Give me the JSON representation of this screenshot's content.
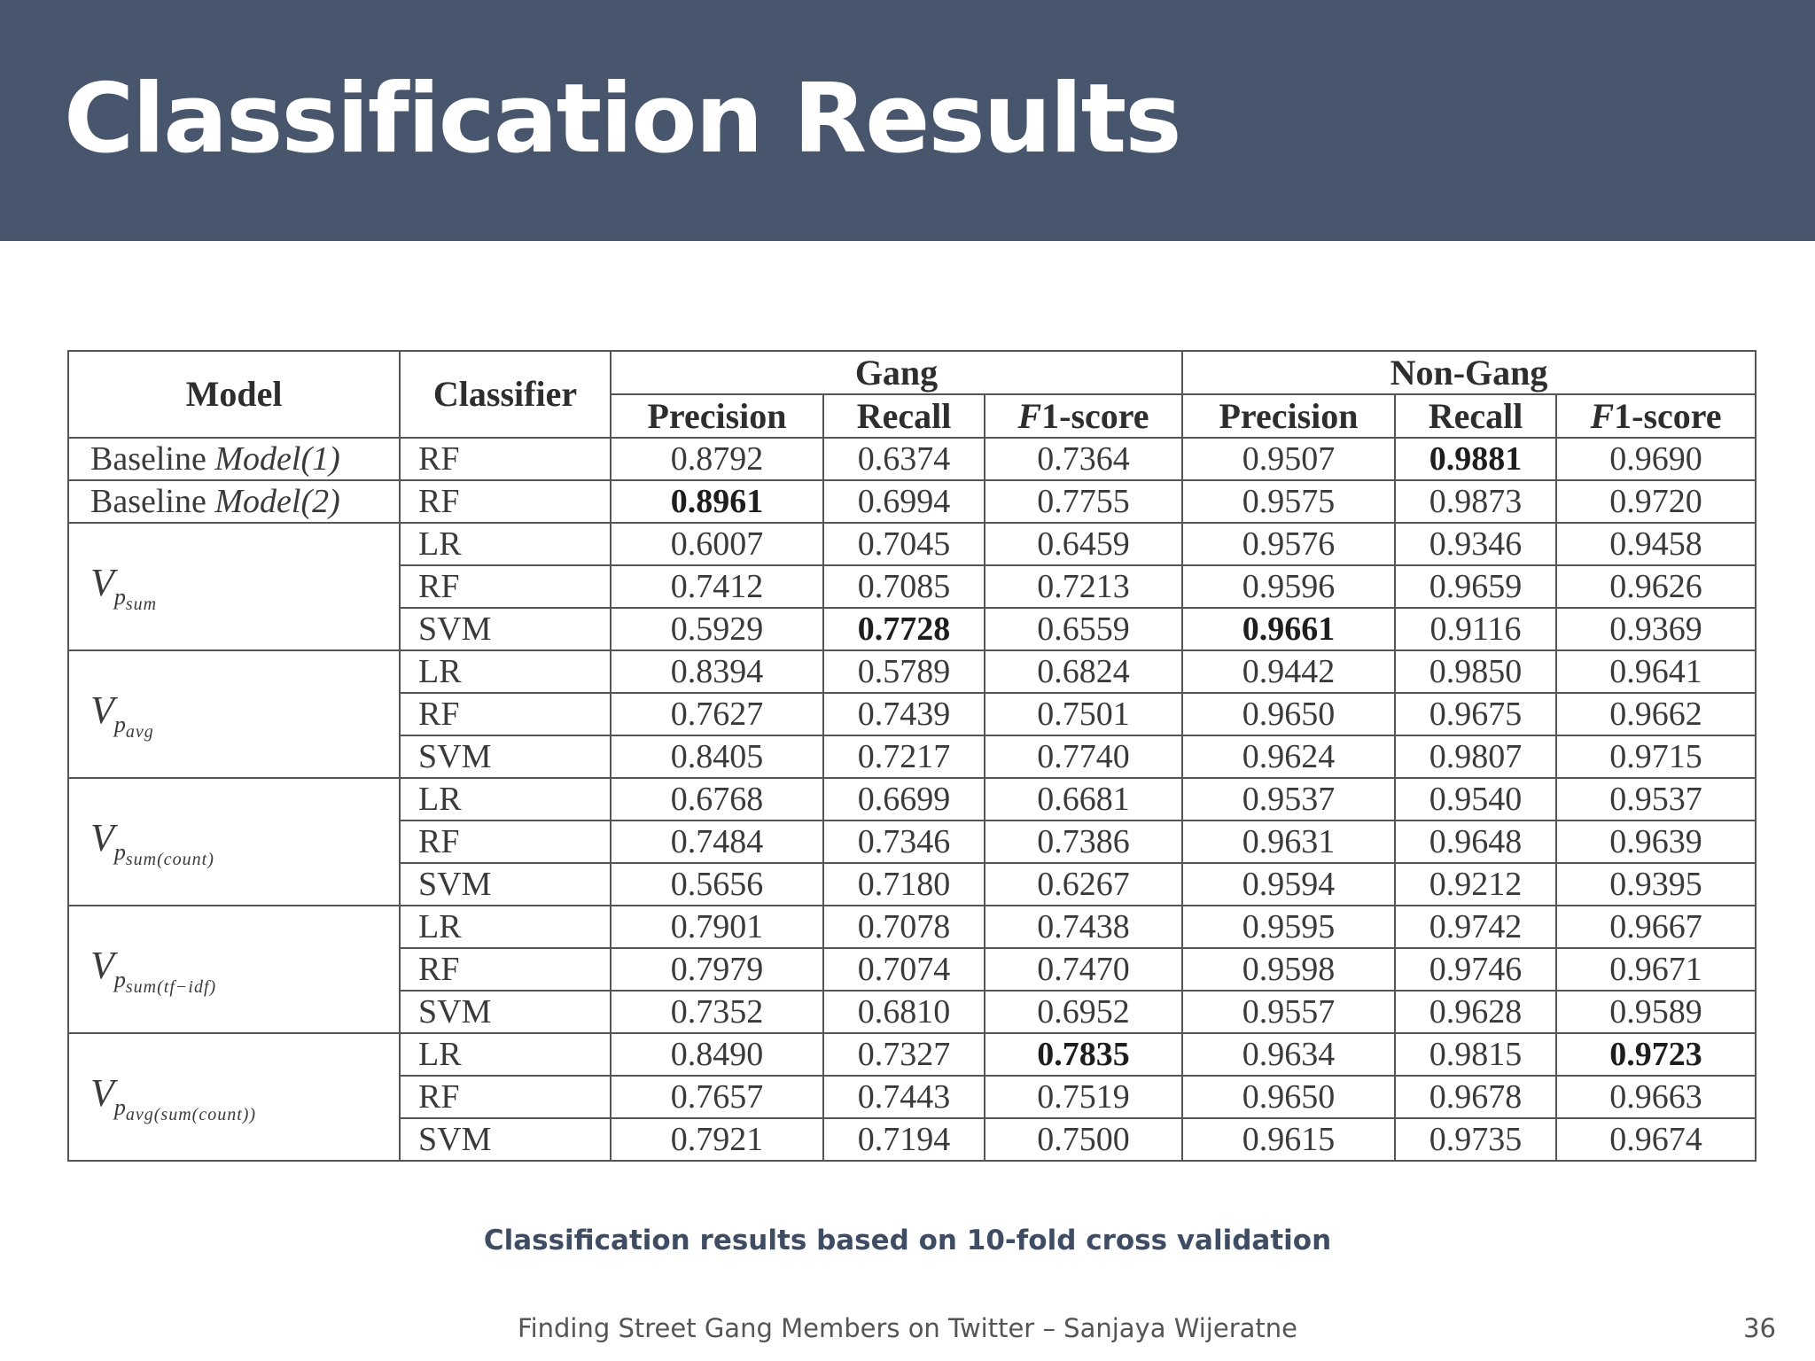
{
  "slide": {
    "title": "Classification Results",
    "caption": "Classification results based on 10-fold cross validation",
    "footer": "Finding Street Gang Members on Twitter – Sanjaya Wijeratne",
    "page_number": "36"
  },
  "table": {
    "headers": {
      "model": "Model",
      "classifier": "Classifier",
      "group_gang": "Gang",
      "group_nongang": "Non-Gang",
      "precision": "Precision",
      "recall": "Recall",
      "f1_prefix": "F",
      "f1_suffix": "1-score"
    },
    "groups": [
      {
        "model_prefix": "Baseline",
        "model_italic": "Model(1)",
        "model_main": "",
        "model_sub": "",
        "model_subsub": "",
        "rows": [
          {
            "classifier": "RF",
            "values": [
              "0.8792",
              "0.6374",
              "0.7364",
              "0.9507",
              "0.9881",
              "0.9690"
            ],
            "best": [
              false,
              false,
              false,
              false,
              true,
              false
            ]
          }
        ]
      },
      {
        "model_prefix": "Baseline",
        "model_italic": "Model(2)",
        "model_main": "",
        "model_sub": "",
        "model_subsub": "",
        "rows": [
          {
            "classifier": "RF",
            "values": [
              "0.8961",
              "0.6994",
              "0.7755",
              "0.9575",
              "0.9873",
              "0.9720"
            ],
            "best": [
              true,
              false,
              false,
              false,
              false,
              false
            ]
          }
        ]
      },
      {
        "model_prefix": "",
        "model_italic": "",
        "model_main": "V",
        "model_sub": "p",
        "model_subsub": "sum",
        "rows": [
          {
            "classifier": "LR",
            "values": [
              "0.6007",
              "0.7045",
              "0.6459",
              "0.9576",
              "0.9346",
              "0.9458"
            ],
            "best": [
              false,
              false,
              false,
              false,
              false,
              false
            ]
          },
          {
            "classifier": "RF",
            "values": [
              "0.7412",
              "0.7085",
              "0.7213",
              "0.9596",
              "0.9659",
              "0.9626"
            ],
            "best": [
              false,
              false,
              false,
              false,
              false,
              false
            ]
          },
          {
            "classifier": "SVM",
            "values": [
              "0.5929",
              "0.7728",
              "0.6559",
              "0.9661",
              "0.9116",
              "0.9369"
            ],
            "best": [
              false,
              true,
              false,
              true,
              false,
              false
            ]
          }
        ]
      },
      {
        "model_prefix": "",
        "model_italic": "",
        "model_main": "V",
        "model_sub": "p",
        "model_subsub": "avg",
        "rows": [
          {
            "classifier": "LR",
            "values": [
              "0.8394",
              "0.5789",
              "0.6824",
              "0.9442",
              "0.9850",
              "0.9641"
            ],
            "best": [
              false,
              false,
              false,
              false,
              false,
              false
            ]
          },
          {
            "classifier": "RF",
            "values": [
              "0.7627",
              "0.7439",
              "0.7501",
              "0.9650",
              "0.9675",
              "0.9662"
            ],
            "best": [
              false,
              false,
              false,
              false,
              false,
              false
            ]
          },
          {
            "classifier": "SVM",
            "values": [
              "0.8405",
              "0.7217",
              "0.7740",
              "0.9624",
              "0.9807",
              "0.9715"
            ],
            "best": [
              false,
              false,
              false,
              false,
              false,
              false
            ]
          }
        ]
      },
      {
        "model_prefix": "",
        "model_italic": "",
        "model_main": "V",
        "model_sub": "p",
        "model_subsub": "sum(count)",
        "rows": [
          {
            "classifier": "LR",
            "values": [
              "0.6768",
              "0.6699",
              "0.6681",
              "0.9537",
              "0.9540",
              "0.9537"
            ],
            "best": [
              false,
              false,
              false,
              false,
              false,
              false
            ]
          },
          {
            "classifier": "RF",
            "values": [
              "0.7484",
              "0.7346",
              "0.7386",
              "0.9631",
              "0.9648",
              "0.9639"
            ],
            "best": [
              false,
              false,
              false,
              false,
              false,
              false
            ]
          },
          {
            "classifier": "SVM",
            "values": [
              "0.5656",
              "0.7180",
              "0.6267",
              "0.9594",
              "0.9212",
              "0.9395"
            ],
            "best": [
              false,
              false,
              false,
              false,
              false,
              false
            ]
          }
        ]
      },
      {
        "model_prefix": "",
        "model_italic": "",
        "model_main": "V",
        "model_sub": "p",
        "model_subsub": "sum(tf−idf)",
        "rows": [
          {
            "classifier": "LR",
            "values": [
              "0.7901",
              "0.7078",
              "0.7438",
              "0.9595",
              "0.9742",
              "0.9667"
            ],
            "best": [
              false,
              false,
              false,
              false,
              false,
              false
            ]
          },
          {
            "classifier": "RF",
            "values": [
              "0.7979",
              "0.7074",
              "0.7470",
              "0.9598",
              "0.9746",
              "0.9671"
            ],
            "best": [
              false,
              false,
              false,
              false,
              false,
              false
            ]
          },
          {
            "classifier": "SVM",
            "values": [
              "0.7352",
              "0.6810",
              "0.6952",
              "0.9557",
              "0.9628",
              "0.9589"
            ],
            "best": [
              false,
              false,
              false,
              false,
              false,
              false
            ]
          }
        ]
      },
      {
        "model_prefix": "",
        "model_italic": "",
        "model_main": "V",
        "model_sub": "p",
        "model_subsub": "avg(sum(count))",
        "rows": [
          {
            "classifier": "LR",
            "values": [
              "0.8490",
              "0.7327",
              "0.7835",
              "0.9634",
              "0.9815",
              "0.9723"
            ],
            "best": [
              false,
              false,
              true,
              false,
              false,
              true
            ]
          },
          {
            "classifier": "RF",
            "values": [
              "0.7657",
              "0.7443",
              "0.7519",
              "0.9650",
              "0.9678",
              "0.9663"
            ],
            "best": [
              false,
              false,
              false,
              false,
              false,
              false
            ]
          },
          {
            "classifier": "SVM",
            "values": [
              "0.7921",
              "0.7194",
              "0.7500",
              "0.9615",
              "0.9735",
              "0.9674"
            ],
            "best": [
              false,
              false,
              false,
              false,
              false,
              false
            ]
          }
        ]
      }
    ]
  }
}
